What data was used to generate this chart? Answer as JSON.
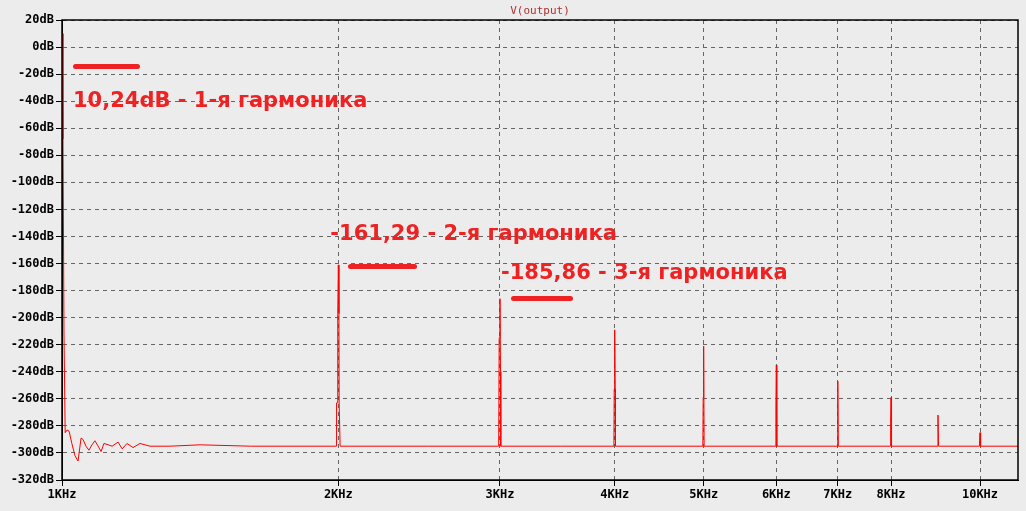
{
  "chart_data": {
    "type": "line",
    "title": "V(output)",
    "x": [
      1,
      1.0025,
      1.005,
      1.008,
      1.013,
      1.018,
      1.025,
      1.033,
      1.041,
      1.049,
      1.054,
      1.062,
      1.07,
      1.078,
      1.086,
      1.095,
      1.103,
      1.111,
      1.123,
      1.134,
      1.151,
      1.163,
      1.177,
      1.195,
      1.216,
      1.247,
      1.311,
      1.414,
      1.604,
      1.958,
      1.99,
      1.991,
      1.996,
      1.997,
      2,
      2.003,
      2.004,
      2.008,
      2.009,
      2.5,
      2.99,
      2.994,
      3,
      3.004,
      3.006,
      3.5,
      3.992,
      3.995,
      4,
      4.005,
      4.008,
      4.99,
      4.994,
      5,
      5.006,
      5.988,
      5.993,
      6,
      6.007,
      6.99,
      7,
      7.008,
      7.985,
      7.992,
      8,
      8.01,
      8.98,
      9,
      9.012,
      9.975,
      9.988,
      10,
      10.015,
      11
    ],
    "series": [
      {
        "color": "#ff0000",
        "values": [
          10,
          -68,
          -212,
          -285,
          -283,
          -284,
          -293,
          -302,
          -306,
          -289,
          -290,
          -295,
          -298,
          -294,
          -291,
          -295,
          -299,
          -293,
          -294,
          -295,
          -292,
          -297,
          -293,
          -296,
          -293,
          -295,
          -295,
          -294,
          -295,
          -295,
          -295,
          -263,
          -263,
          -197,
          -161,
          -197,
          -263,
          -263,
          -295,
          -295,
          -295,
          -215,
          -186,
          -240,
          -295,
          -295,
          -295,
          -253,
          -209,
          -253,
          -295,
          -295,
          -259,
          -221,
          -295,
          -295,
          -266,
          -235,
          -295,
          -295,
          -247,
          -295,
          -295,
          -278,
          -259,
          -295,
          -295,
          -272,
          -295,
          -295,
          -291,
          -285,
          -295,
          -295
        ]
      }
    ],
    "xlim": [
      1,
      11
    ],
    "xticks": [
      {
        "value": 1,
        "label": "1KHz"
      },
      {
        "value": 2,
        "label": "2KHz"
      },
      {
        "value": 3,
        "label": "3KHz"
      },
      {
        "value": 4,
        "label": "4KHz"
      },
      {
        "value": 5,
        "label": "5KHz"
      },
      {
        "value": 6,
        "label": "6KHz"
      },
      {
        "value": 7,
        "label": "7KHz"
      },
      {
        "value": 8,
        "label": "8KHz"
      },
      {
        "value": 10,
        "label": "10KHz"
      }
    ],
    "ylim": [
      -320,
      20
    ],
    "yticks": [
      {
        "value": 20,
        "label": "20dB"
      },
      {
        "value": 0,
        "label": "0dB"
      },
      {
        "value": -20,
        "label": "-20dB"
      },
      {
        "value": -40,
        "label": "-40dB"
      },
      {
        "value": -60,
        "label": "-60dB"
      },
      {
        "value": -80,
        "label": "-80dB"
      },
      {
        "value": -100,
        "label": "-100dB"
      },
      {
        "value": -120,
        "label": "-120dB"
      },
      {
        "value": -140,
        "label": "-140dB"
      },
      {
        "value": -160,
        "label": "-160dB"
      },
      {
        "value": -180,
        "label": "-180dB"
      },
      {
        "value": -200,
        "label": "-200dB"
      },
      {
        "value": -220,
        "label": "-220dB"
      },
      {
        "value": -240,
        "label": "-240dB"
      },
      {
        "value": -260,
        "label": "-260dB"
      },
      {
        "value": -280,
        "label": "-280dB"
      },
      {
        "value": -300,
        "label": "-300dB"
      },
      {
        "value": -320,
        "label": "-320dB"
      }
    ],
    "log": "x",
    "grid": true,
    "legend": false,
    "marker": "none",
    "line_style": "solid",
    "annotations": [
      {
        "text": "10,24dB - 1-я гармоника",
        "x": 1,
        "y": 10.24
      },
      {
        "text": "-161,29 - 2-я гармоника",
        "x": 2,
        "y": -161.29
      },
      {
        "text": "-185,86 - 3-я гармоника",
        "x": 3,
        "y": -185.86
      }
    ]
  }
}
